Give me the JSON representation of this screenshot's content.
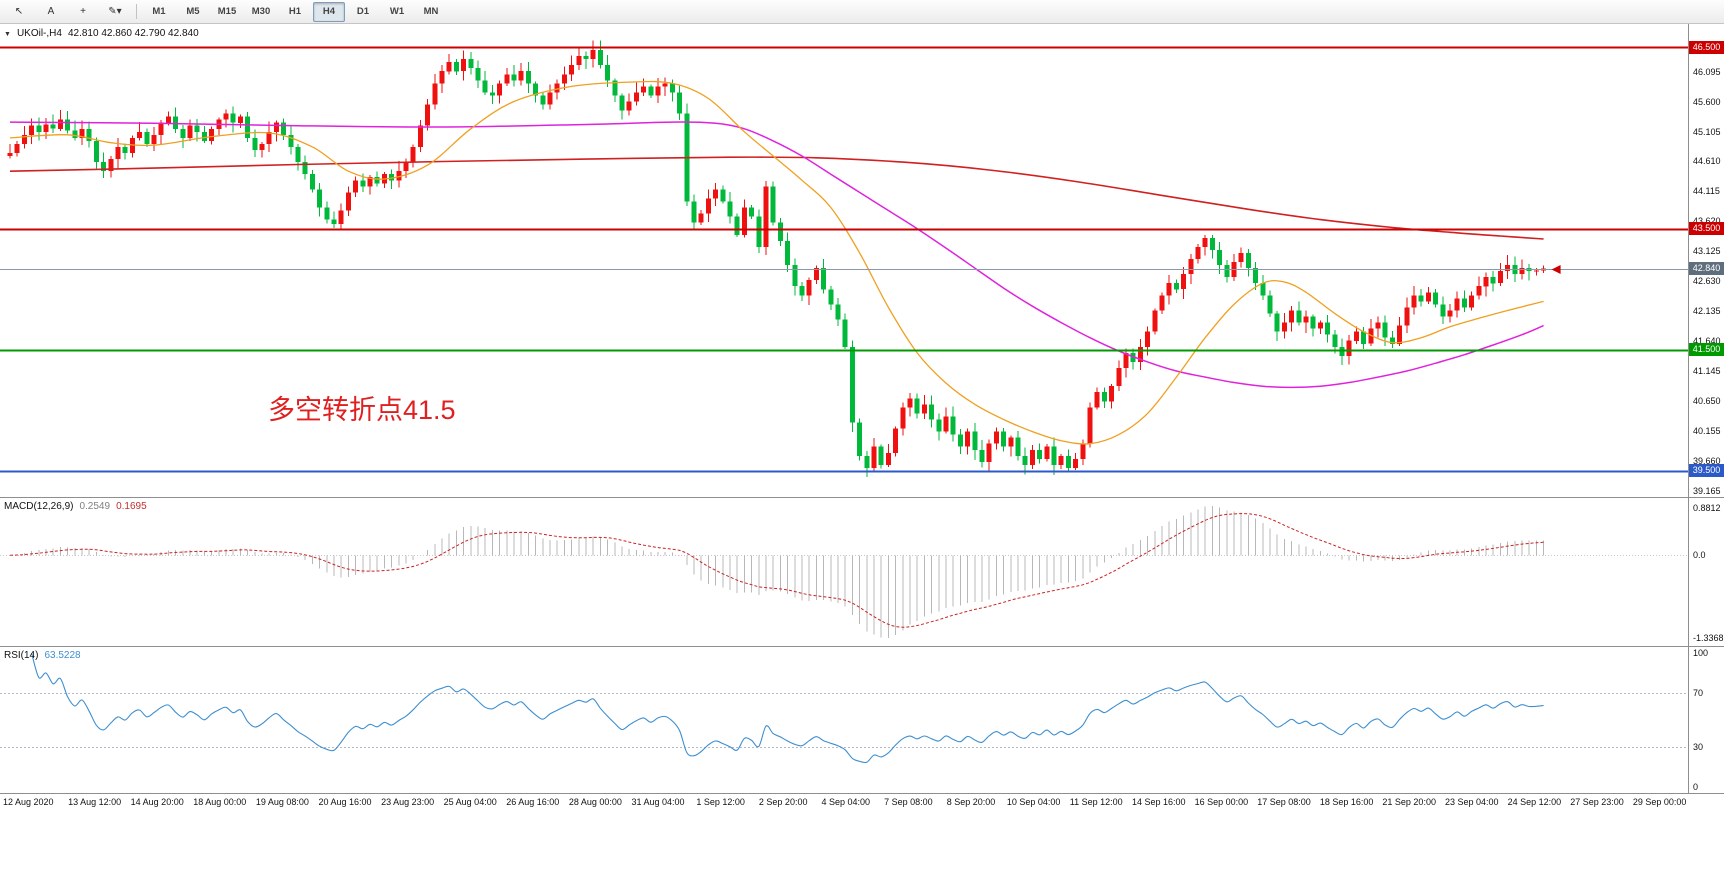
{
  "window": {
    "dropdown_glyph": "▼",
    "symbol_tf": "UKOil-,H4",
    "ohlc": "42.810 42.860 42.790 42.840"
  },
  "toolbar": {
    "tools": [
      {
        "name": "cursor-tool",
        "glyph": "↖"
      },
      {
        "name": "text-tool",
        "glyph": "A"
      },
      {
        "name": "crosshair-tool",
        "glyph": "+"
      },
      {
        "name": "draw-tool",
        "glyph": "✎",
        "caret": "▾"
      }
    ],
    "timeframes": [
      "M1",
      "M5",
      "M15",
      "M30",
      "H1",
      "H4",
      "D1",
      "W1",
      "MN"
    ],
    "active_timeframe": "H4"
  },
  "annotation": {
    "text": "多空转折点41.5",
    "color": "#e02020"
  },
  "colors": {
    "up": "#ef1010",
    "down": "#00b93b",
    "current_line": "#8899aa",
    "macd_hist": "#b8b8b8",
    "macd_signal": "#cc2222",
    "rsi_line": "#3d8fd1",
    "rsi_level": "#b9b9c9"
  },
  "macd": {
    "name": "MACD(12,26,9)",
    "value_main": "0.2549",
    "value_signal": "0.1695",
    "axis": [
      "0.8812",
      "0.0",
      "-1.3368"
    ]
  },
  "rsi": {
    "name": "RSI(14)",
    "value": "63.5228",
    "axis": [
      "100",
      "70",
      "30",
      "0"
    ],
    "levels": [
      70,
      30
    ]
  },
  "chart_data": {
    "type": "candlestick",
    "symbol": "UKOil-",
    "timeframe": "H4",
    "last_candle": {
      "open": 42.81,
      "high": 42.86,
      "low": 42.79,
      "close": 42.84
    },
    "current_price": 42.84,
    "y_axis": {
      "min": 39.07,
      "max": 46.88
    },
    "first_open": 44.7,
    "wick_base": 0.03,
    "wick_var": 0.14,
    "closes": [
      44.75,
      44.9,
      45.05,
      45.2,
      45.1,
      45.22,
      45.15,
      45.3,
      45.12,
      45.0,
      45.15,
      44.95,
      44.6,
      44.45,
      44.65,
      44.85,
      44.75,
      45.0,
      45.1,
      44.9,
      45.05,
      45.25,
      45.35,
      45.15,
      45.0,
      45.2,
      45.1,
      44.95,
      45.15,
      45.3,
      45.4,
      45.25,
      45.35,
      45.0,
      44.8,
      44.9,
      45.1,
      45.25,
      45.05,
      44.85,
      44.6,
      44.4,
      44.15,
      43.85,
      43.65,
      43.58,
      43.8,
      44.1,
      44.3,
      44.2,
      44.35,
      44.25,
      44.4,
      44.3,
      44.45,
      44.6,
      44.85,
      45.2,
      45.55,
      45.9,
      46.1,
      46.25,
      46.1,
      46.3,
      46.15,
      45.95,
      45.75,
      45.7,
      45.9,
      46.05,
      45.95,
      46.1,
      45.9,
      45.7,
      45.55,
      45.75,
      45.9,
      46.05,
      46.2,
      46.35,
      46.3,
      46.45,
      46.2,
      45.95,
      45.7,
      45.45,
      45.6,
      45.75,
      45.85,
      45.7,
      45.85,
      45.9,
      45.75,
      45.4,
      43.95,
      43.6,
      43.75,
      44.0,
      44.15,
      43.95,
      43.7,
      43.4,
      43.85,
      43.7,
      43.2,
      44.2,
      43.6,
      43.3,
      42.9,
      42.55,
      42.4,
      42.65,
      42.85,
      42.5,
      42.25,
      42.0,
      41.55,
      40.3,
      39.75,
      39.55,
      39.9,
      39.6,
      39.8,
      40.2,
      40.55,
      40.7,
      40.45,
      40.6,
      40.35,
      40.15,
      40.4,
      40.1,
      39.9,
      40.15,
      39.85,
      39.65,
      39.95,
      40.15,
      39.9,
      40.05,
      39.75,
      39.6,
      39.85,
      39.7,
      39.9,
      39.6,
      39.75,
      39.55,
      39.7,
      39.95,
      40.55,
      40.8,
      40.65,
      40.9,
      41.2,
      41.45,
      41.3,
      41.55,
      41.8,
      42.15,
      42.4,
      42.6,
      42.5,
      42.75,
      43.0,
      43.2,
      43.35,
      43.15,
      42.9,
      42.7,
      42.95,
      43.1,
      42.85,
      42.6,
      42.4,
      42.1,
      41.8,
      41.95,
      42.15,
      41.95,
      42.05,
      41.85,
      41.95,
      41.75,
      41.55,
      41.4,
      41.65,
      41.8,
      41.6,
      41.85,
      41.95,
      41.7,
      41.6,
      41.9,
      42.2,
      42.4,
      42.3,
      42.45,
      42.25,
      42.05,
      42.15,
      42.35,
      42.2,
      42.4,
      42.55,
      42.7,
      42.6,
      42.8,
      42.9,
      42.75,
      42.85,
      42.8,
      42.81,
      42.84
    ],
    "price_axis_labels": [
      46.095,
      45.6,
      45.105,
      44.61,
      44.115,
      43.62,
      43.125,
      42.63,
      42.135,
      41.64,
      41.145,
      40.65,
      40.155,
      39.66,
      39.165
    ],
    "price_tags": [
      {
        "label": "46.500",
        "price": 46.5,
        "color": "#cc0000"
      },
      {
        "label": "43.500",
        "price": 43.5,
        "color": "#cc0000"
      },
      {
        "label": "42.840",
        "price": 42.84,
        "color": "#5f6e7d"
      },
      {
        "label": "41.500",
        "price": 41.5,
        "color": "#009900"
      },
      {
        "label": "39.500",
        "price": 39.5,
        "color": "#2b59c8"
      }
    ],
    "hlines": [
      {
        "price": 46.5,
        "color": "#cc0000",
        "width": 2
      },
      {
        "price": 43.5,
        "color": "#cc0000",
        "width": 2
      },
      {
        "price": 41.5,
        "color": "#009900",
        "width": 2
      },
      {
        "price": 39.5,
        "color": "#2b59c8",
        "width": 2
      }
    ],
    "moving_averages": [
      {
        "name": "ma-slow-red",
        "color": "#d02020",
        "width": 1.6,
        "points": [
          [
            0,
            44.45
          ],
          [
            20,
            44.5
          ],
          [
            40,
            44.56
          ],
          [
            60,
            44.61
          ],
          [
            80,
            44.65
          ],
          [
            100,
            44.68
          ],
          [
            112,
            44.67
          ],
          [
            124,
            44.6
          ],
          [
            136,
            44.47
          ],
          [
            148,
            44.28
          ],
          [
            160,
            44.05
          ],
          [
            172,
            43.82
          ],
          [
            182,
            43.65
          ],
          [
            192,
            43.52
          ],
          [
            200,
            43.44
          ],
          [
            207,
            43.38
          ],
          [
            213,
            43.33
          ]
        ]
      },
      {
        "name": "ma-mid-magenta",
        "color": "#e022dd",
        "width": 1.5,
        "points": [
          [
            0,
            45.26
          ],
          [
            20,
            45.24
          ],
          [
            40,
            45.2
          ],
          [
            60,
            45.18
          ],
          [
            80,
            45.22
          ],
          [
            92,
            45.26
          ],
          [
            98,
            45.24
          ],
          [
            102,
            45.15
          ],
          [
            106,
            44.95
          ],
          [
            110,
            44.7
          ],
          [
            114,
            44.4
          ],
          [
            118,
            44.1
          ],
          [
            122,
            43.8
          ],
          [
            126,
            43.5
          ],
          [
            130,
            43.18
          ],
          [
            134,
            42.85
          ],
          [
            138,
            42.52
          ],
          [
            142,
            42.22
          ],
          [
            146,
            41.95
          ],
          [
            150,
            41.7
          ],
          [
            154,
            41.48
          ],
          [
            158,
            41.3
          ],
          [
            162,
            41.15
          ],
          [
            166,
            41.05
          ],
          [
            170,
            40.96
          ],
          [
            174,
            40.9
          ],
          [
            178,
            40.88
          ],
          [
            182,
            40.9
          ],
          [
            186,
            40.96
          ],
          [
            190,
            41.05
          ],
          [
            194,
            41.15
          ],
          [
            198,
            41.28
          ],
          [
            202,
            41.42
          ],
          [
            206,
            41.58
          ],
          [
            210,
            41.75
          ],
          [
            213,
            41.9
          ]
        ]
      },
      {
        "name": "ma-fast-orange",
        "color": "#efa020",
        "width": 1.3,
        "points": [
          [
            0,
            45.0
          ],
          [
            8,
            45.05
          ],
          [
            14,
            44.92
          ],
          [
            20,
            44.88
          ],
          [
            28,
            45.02
          ],
          [
            36,
            45.08
          ],
          [
            42,
            44.85
          ],
          [
            47,
            44.45
          ],
          [
            52,
            44.32
          ],
          [
            58,
            44.55
          ],
          [
            64,
            45.15
          ],
          [
            70,
            45.6
          ],
          [
            78,
            45.85
          ],
          [
            86,
            45.92
          ],
          [
            92,
            45.9
          ],
          [
            97,
            45.65
          ],
          [
            102,
            45.1
          ],
          [
            106,
            44.7
          ],
          [
            110,
            44.3
          ],
          [
            114,
            43.85
          ],
          [
            118,
            43.1
          ],
          [
            122,
            42.2
          ],
          [
            126,
            41.45
          ],
          [
            130,
            40.95
          ],
          [
            134,
            40.6
          ],
          [
            138,
            40.35
          ],
          [
            142,
            40.15
          ],
          [
            146,
            40.0
          ],
          [
            150,
            39.95
          ],
          [
            154,
            40.1
          ],
          [
            158,
            40.45
          ],
          [
            162,
            41.05
          ],
          [
            166,
            41.7
          ],
          [
            170,
            42.25
          ],
          [
            174,
            42.6
          ],
          [
            177,
            42.62
          ],
          [
            180,
            42.45
          ],
          [
            184,
            42.1
          ],
          [
            188,
            41.8
          ],
          [
            192,
            41.62
          ],
          [
            196,
            41.7
          ],
          [
            200,
            41.88
          ],
          [
            204,
            42.02
          ],
          [
            208,
            42.15
          ],
          [
            213,
            42.3
          ]
        ]
      }
    ],
    "macd_params": [
      12,
      26,
      9
    ],
    "rsi_period": 14,
    "time_labels": [
      "12 Aug 2020",
      "13 Aug 12:00",
      "14 Aug 20:00",
      "18 Aug 00:00",
      "19 Aug 08:00",
      "20 Aug 16:00",
      "23 Aug 23:00",
      "25 Aug 04:00",
      "26 Aug 16:00",
      "28 Aug 00:00",
      "31 Aug 04:00",
      "1 Sep 12:00",
      "2 Sep 20:00",
      "4 Sep 04:00",
      "7 Sep 08:00",
      "8 Sep 20:00",
      "10 Sep 04:00",
      "11 Sep 12:00",
      "14 Sep 16:00",
      "16 Sep 00:00",
      "17 Sep 08:00",
      "18 Sep 16:00",
      "21 Sep 20:00",
      "23 Sep 04:00",
      "24 Sep 12:00",
      "27 Sep 23:00",
      "29 Sep 00:00"
    ]
  }
}
